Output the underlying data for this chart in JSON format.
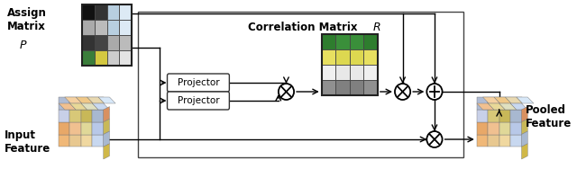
{
  "bg_color": "#ffffff",
  "assign_matrix_label_lines": [
    "Assign",
    "Matrix"
  ],
  "assign_matrix_label_p": "$P$",
  "input_feature_label": "Input\nFeature",
  "corr_matrix_label": "Correlation Matrix ",
  "corr_matrix_R": "$R$",
  "pooled_feature_label": "Pooled\nFeature",
  "projector_label": "Projector",
  "assign_grid": [
    [
      "#111111",
      "#333333",
      "#b8cfe0",
      "#ddeaf5"
    ],
    [
      "#aaaaaa",
      "#bbbbbb",
      "#b8cfe0",
      "#ddeaf5"
    ],
    [
      "#333333",
      "#444444",
      "#aaaaaa",
      "#bbbbbb"
    ],
    [
      "#3a7d3a",
      "#d4c840",
      "#cccccc",
      "#e4e4e4"
    ]
  ],
  "corr_grid": [
    [
      "#2e7d2e",
      "#3a8f3a",
      "#3a8f3a",
      "#2e7d2e"
    ],
    [
      "#e8e060",
      "#ddd850",
      "#ddd850",
      "#e8e060"
    ],
    [
      "#f0f0f0",
      "#e8e8e8",
      "#e8e8e8",
      "#f0f0f0"
    ],
    [
      "#909090",
      "#808080",
      "#808080",
      "#909090"
    ]
  ],
  "cube_front_input": [
    [
      "#e8a870",
      "#f0c090",
      "#e0b898",
      "#c8d8f0",
      "#e8d888"
    ],
    [
      "#f0b878",
      "#e8d898",
      "#d0c870",
      "#b8c8e8",
      "#c8d8e8"
    ],
    [
      "#e0c890",
      "#d8b868",
      "#c8c8c8",
      "#a0b8d0",
      "#e8c860"
    ],
    [
      "#b0c0d8",
      "#c8d0e8",
      "#e0d878",
      "#d8c058",
      "#c0b050"
    ]
  ],
  "cube_top_input": [
    [
      "#f5d0a0",
      "#f0c888",
      "#e8d8b0",
      "#d8e8f8"
    ],
    [
      "#f0c090",
      "#e8d898",
      "#e0e0c0",
      "#c8d8f0"
    ],
    [
      "#e8b878",
      "#f0d8a0",
      "#d8d8b8",
      "#b8c8e8"
    ]
  ],
  "cube_right_input": [
    [
      "#d89868",
      "#c8a858"
    ],
    [
      "#c8a860",
      "#c8b860"
    ],
    [
      "#b0c0d0",
      "#a8b8c8"
    ],
    [
      "#d8c068",
      "#c8b058"
    ]
  ]
}
